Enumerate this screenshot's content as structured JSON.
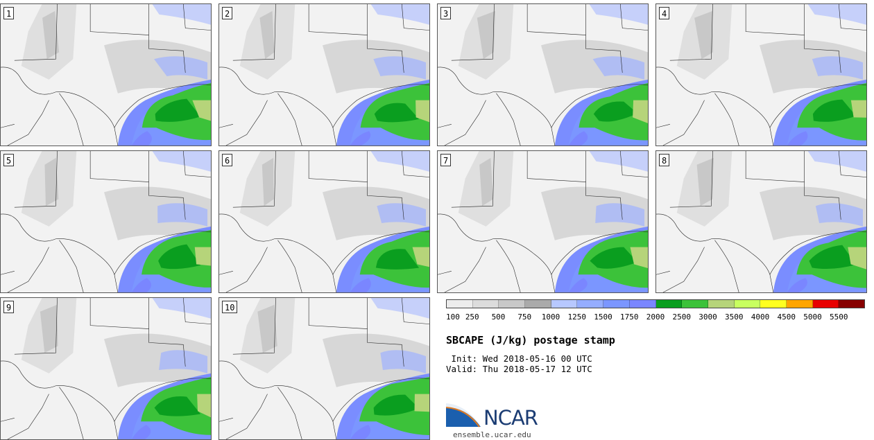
{
  "panels": [
    {
      "label": "1"
    },
    {
      "label": "2"
    },
    {
      "label": "3"
    },
    {
      "label": "4"
    },
    {
      "label": "5"
    },
    {
      "label": "6"
    },
    {
      "label": "7"
    },
    {
      "label": "8"
    },
    {
      "label": "9"
    },
    {
      "label": "10"
    }
  ],
  "colorbar": {
    "colors": [
      "#ececec",
      "#dcdcdc",
      "#c8c8c8",
      "#aaaaaa",
      "#b7c8ff",
      "#95adff",
      "#7b96ff",
      "#7a86ff",
      "#0a9e1f",
      "#3cc23a",
      "#b6d47a",
      "#c8ff60",
      "#ffff20",
      "#ffa500",
      "#e80000",
      "#870000"
    ],
    "ticks": [
      "100",
      "250",
      "500",
      "750",
      "1000",
      "1250",
      "1500",
      "1750",
      "2000",
      "2500",
      "3000",
      "3500",
      "4000",
      "4500",
      "5000",
      "5500"
    ]
  },
  "title": "SBCAPE (J/kg) postage stamp",
  "init": " Init: Wed 2018-05-16 00 UTC",
  "valid": "Valid: Thu 2018-05-17 12 UTC",
  "logo": {
    "text": "NCAR",
    "color": "#1b3c73"
  },
  "site": "ensemble.ucar.edu"
}
